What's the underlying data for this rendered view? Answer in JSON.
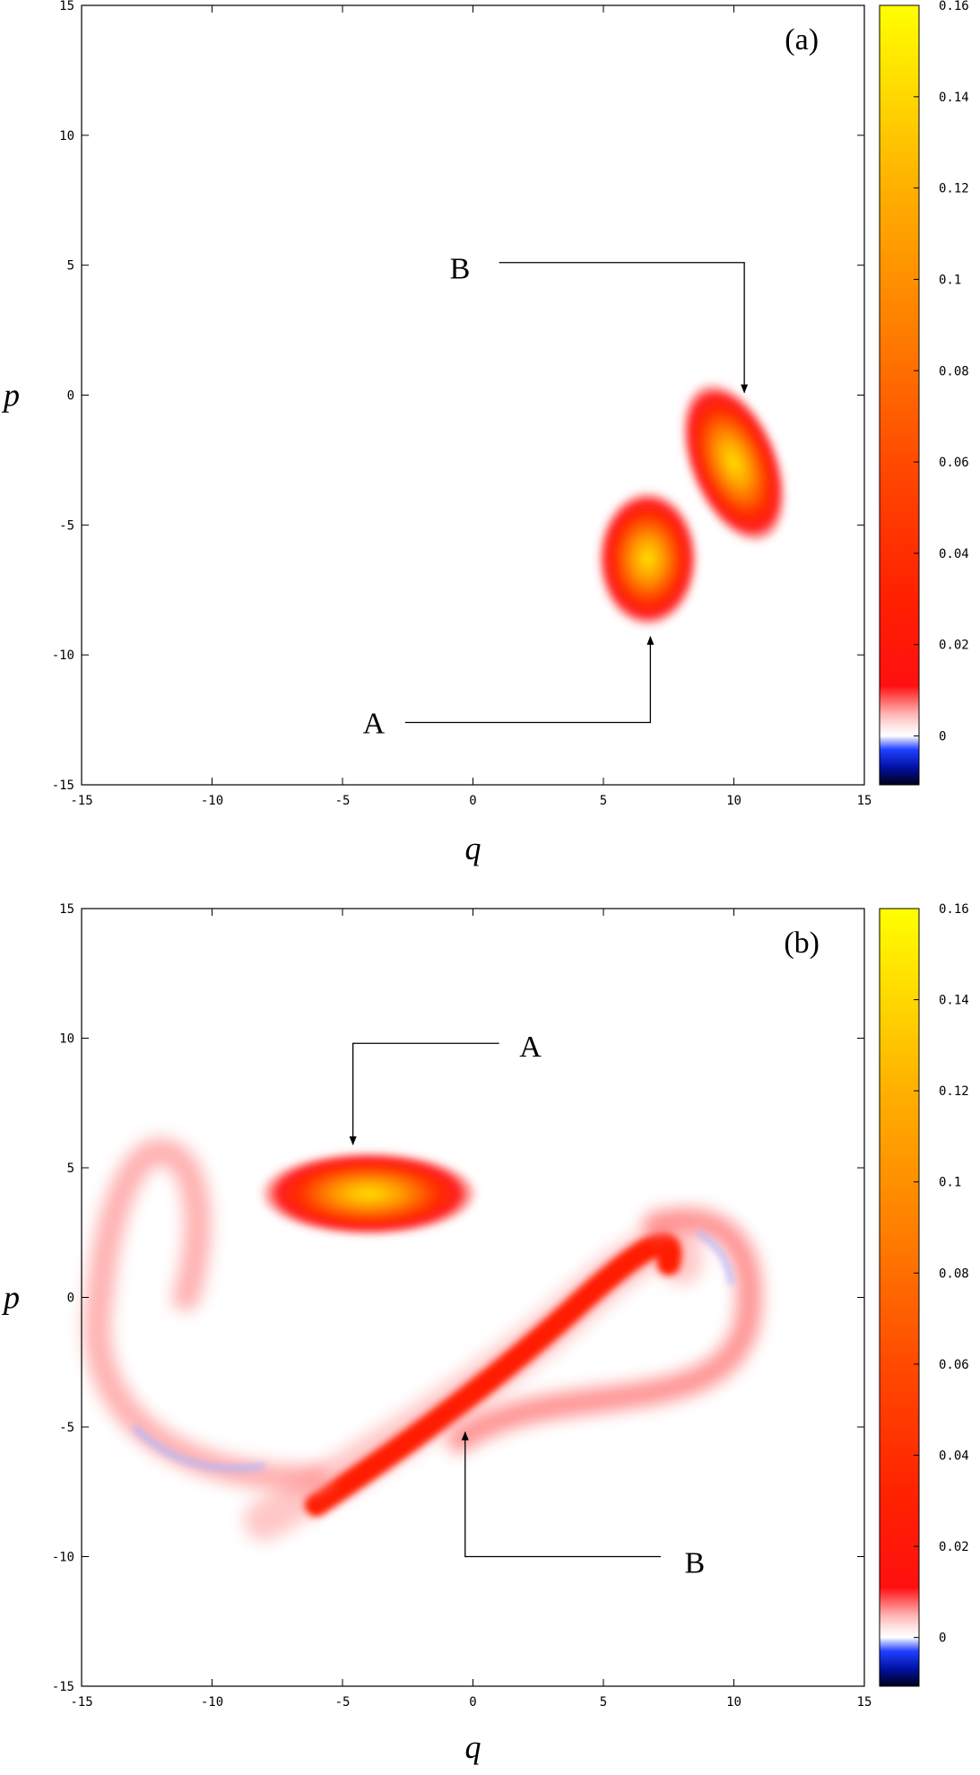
{
  "chart_data": [
    {
      "type": "heatmap",
      "label": "(a)",
      "xlabel": "q",
      "ylabel": "p",
      "xlim": [
        -15,
        15
      ],
      "ylim": [
        -15,
        15
      ],
      "xticks": [
        -15,
        -10,
        -5,
        0,
        5,
        10,
        15
      ],
      "yticks": [
        -15,
        -10,
        -5,
        0,
        5,
        10,
        15
      ],
      "colorbar": {
        "clim": [
          -0.0107,
          0.16
        ],
        "ticks": [
          0,
          0.02,
          0.04,
          0.06,
          0.08,
          0.1,
          0.12,
          0.14,
          0.16
        ]
      },
      "annotations": [
        {
          "text": "A"
        },
        {
          "text": "B"
        }
      ]
    },
    {
      "type": "heatmap",
      "label": "(b)",
      "xlabel": "q",
      "ylabel": "p",
      "xlim": [
        -15,
        15
      ],
      "ylim": [
        -15,
        15
      ],
      "xticks": [
        -15,
        -10,
        -5,
        0,
        5,
        10,
        15
      ],
      "yticks": [
        -15,
        -10,
        -5,
        0,
        5,
        10,
        15
      ],
      "colorbar": {
        "clim": [
          -0.0107,
          0.16
        ],
        "ticks": [
          0,
          0.02,
          0.04,
          0.06,
          0.08,
          0.1,
          0.12,
          0.14,
          0.16
        ]
      },
      "annotations": [
        {
          "text": "A"
        },
        {
          "text": "B"
        }
      ]
    }
  ]
}
